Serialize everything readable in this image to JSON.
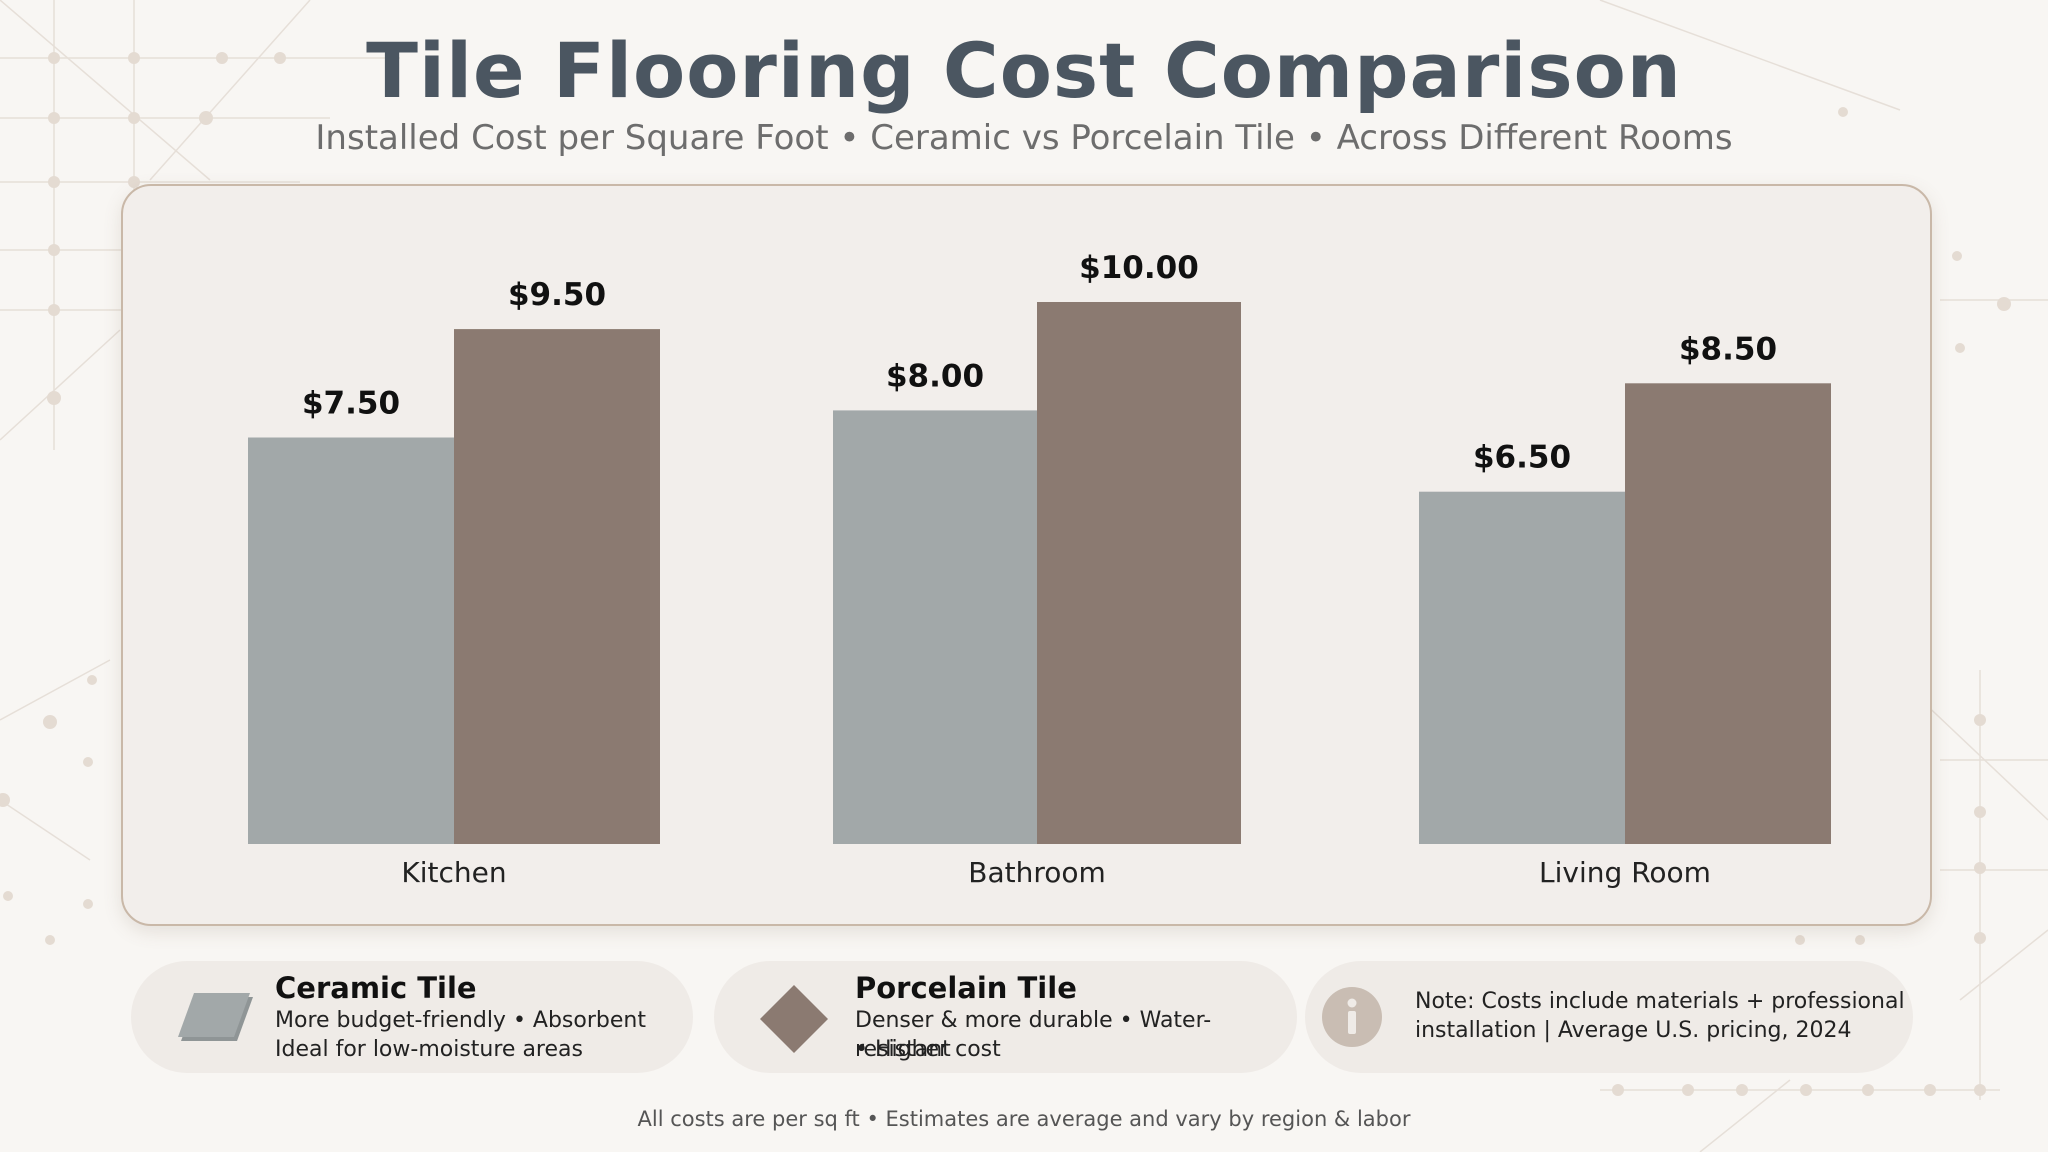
{
  "title": "Tile Flooring Cost Comparison",
  "subtitle": "Installed Cost per Square Foot • Ceramic vs Porcelain Tile • Across Different Rooms",
  "chart_data": {
    "type": "bar",
    "categories": [
      "Kitchen",
      "Bathroom",
      "Living Room"
    ],
    "series": [
      {
        "name": "Ceramic Tile",
        "color": "#a2a8a9",
        "values": [
          7.5,
          8.0,
          6.5
        ],
        "labels": [
          "$7.50",
          "$8.00",
          "$6.50"
        ]
      },
      {
        "name": "Porcelain Tile",
        "color": "#8b7a71",
        "values": [
          9.5,
          10.0,
          8.5
        ],
        "labels": [
          "$9.50",
          "$10.00",
          "$8.50"
        ]
      }
    ],
    "ylim": [
      0,
      10
    ],
    "grid": false,
    "legend": "bottom"
  },
  "legend": {
    "ceramic": {
      "icon": "ceramic-tile-icon",
      "title": "Ceramic Tile",
      "line1": "More budget-friendly • Absorbent",
      "line2": "Ideal for low-moisture areas"
    },
    "porcelain": {
      "icon": "porcelain-diamond-icon",
      "title": "Porcelain Tile",
      "line1": "Denser & more durable • Water-resistant",
      "line2": "• Higher cost"
    },
    "note": {
      "icon": "info-icon",
      "line1": "Note: Costs include materials + professional",
      "line2": "installation | Average U.S. pricing, 2024"
    }
  },
  "footnote": "All costs are per sq ft • Estimates are average and vary by region & labor"
}
